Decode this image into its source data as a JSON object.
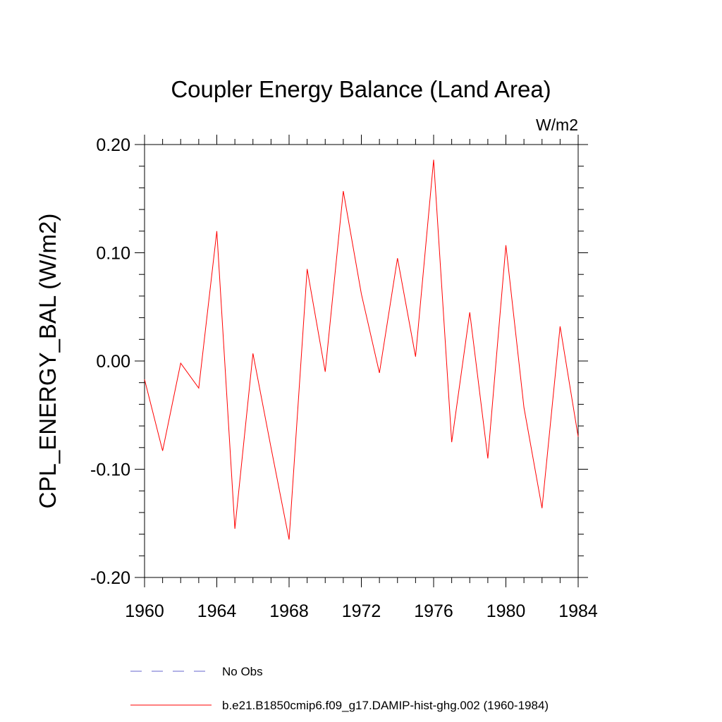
{
  "chart_data": {
    "type": "line",
    "title": "Coupler Energy Balance (Land Area)",
    "units": "W/m2",
    "ylabel": "CPL_ENERGY_BAL  (W/m2)",
    "xlabel": "",
    "xlim": [
      1960,
      1984
    ],
    "ylim": [
      -0.2,
      0.2
    ],
    "x_ticks": [
      1960,
      1964,
      1968,
      1972,
      1976,
      1980,
      1984
    ],
    "y_ticks": [
      -0.2,
      -0.1,
      0.0,
      0.1,
      0.2
    ],
    "x_tick_labels": [
      "1960",
      "1964",
      "1968",
      "1972",
      "1976",
      "1980",
      "1984"
    ],
    "y_tick_labels": [
      "-0.20",
      "-0.10",
      "0.00",
      "0.10",
      "0.20"
    ],
    "grid": false,
    "legend_position": "bottom",
    "series": [
      {
        "name": "No Obs",
        "color": "#6666cc",
        "dash": true,
        "x": [],
        "y": []
      },
      {
        "name": "b.e21.B1850cmip6.f09_g17.DAMIP-hist-ghg.002 (1960-1984)",
        "color": "#ff0000",
        "dash": false,
        "x": [
          1960,
          1961,
          1962,
          1963,
          1964,
          1965,
          1966,
          1967,
          1968,
          1969,
          1970,
          1971,
          1972,
          1973,
          1974,
          1975,
          1976,
          1977,
          1978,
          1979,
          1980,
          1981,
          1982,
          1983,
          1984
        ],
        "y": [
          -0.017,
          -0.083,
          -0.002,
          -0.025,
          0.12,
          -0.155,
          0.007,
          -0.08,
          -0.165,
          0.085,
          -0.01,
          0.157,
          0.062,
          -0.011,
          0.095,
          0.004,
          0.186,
          -0.075,
          0.045,
          -0.09,
          0.107,
          -0.043,
          -0.136,
          0.032,
          -0.07
        ]
      }
    ]
  }
}
